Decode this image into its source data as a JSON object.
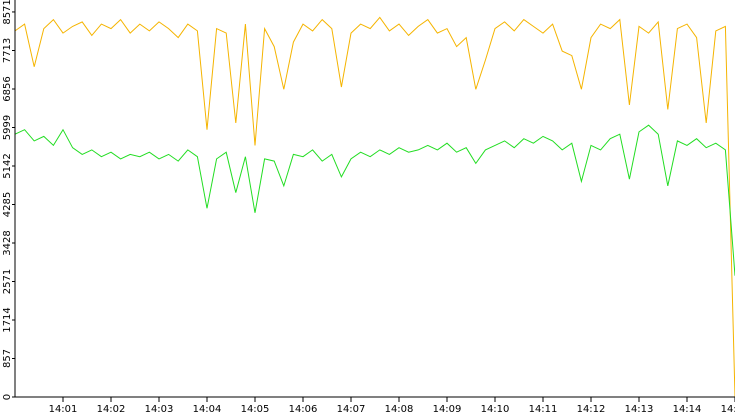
{
  "chart_data": {
    "type": "line",
    "x": [
      0,
      0.2,
      0.4,
      0.6,
      0.8,
      1,
      1.2,
      1.4,
      1.6,
      1.8,
      2,
      2.2,
      2.4,
      2.6,
      2.8,
      3,
      3.2,
      3.4,
      3.6,
      3.8,
      4,
      4.2,
      4.4,
      4.6,
      4.8,
      5,
      5.2,
      5.4,
      5.6,
      5.8,
      6,
      6.2,
      6.4,
      6.6,
      6.8,
      7,
      7.2,
      7.4,
      7.6,
      7.8,
      8,
      8.2,
      8.4,
      8.6,
      8.8,
      9,
      9.2,
      9.4,
      9.6,
      9.8,
      10,
      10.2,
      10.4,
      10.6,
      10.8,
      11,
      11.2,
      11.4,
      11.6,
      11.8,
      12,
      12.2,
      12.4,
      12.6,
      12.8,
      13,
      13.2,
      13.4,
      13.6,
      13.8,
      14,
      14.2,
      14.4,
      14.6,
      14.8,
      15
    ],
    "series": [
      {
        "color": "#f5b400",
        "values": [
          8150,
          8300,
          7350,
          8200,
          8400,
          8100,
          8250,
          8350,
          8050,
          8300,
          8200,
          8400,
          8100,
          8300,
          8150,
          8350,
          8200,
          8000,
          8300,
          8150,
          5950,
          8200,
          8100,
          6100,
          8300,
          5600,
          8200,
          7800,
          6850,
          7900,
          8300,
          8150,
          8400,
          8200,
          6900,
          8100,
          8300,
          8200,
          8450,
          8150,
          8300,
          8050,
          8250,
          8400,
          8100,
          8200,
          7800,
          8000,
          6850,
          7500,
          8200,
          8350,
          8150,
          8400,
          8250,
          8100,
          8300,
          7700,
          7600,
          6850,
          8000,
          8300,
          8200,
          8400,
          6500,
          8250,
          8100,
          8350,
          6400,
          8200,
          8300,
          8000,
          6100,
          8150,
          8250,
          0
        ]
      },
      {
        "color": "#22dd22",
        "values": [
          5850,
          5950,
          5700,
          5800,
          5600,
          5950,
          5550,
          5400,
          5500,
          5350,
          5450,
          5300,
          5400,
          5350,
          5450,
          5300,
          5400,
          5250,
          5500,
          5350,
          4200,
          5300,
          5450,
          4550,
          5350,
          4100,
          5300,
          5250,
          4700,
          5400,
          5350,
          5500,
          5250,
          5400,
          4900,
          5300,
          5450,
          5350,
          5500,
          5400,
          5550,
          5450,
          5500,
          5600,
          5500,
          5650,
          5450,
          5550,
          5200,
          5500,
          5600,
          5700,
          5550,
          5750,
          5650,
          5800,
          5700,
          5500,
          5650,
          4800,
          5600,
          5500,
          5750,
          5850,
          4850,
          5900,
          6050,
          5850,
          4700,
          5700,
          5600,
          5750,
          5550,
          5650,
          5500,
          2700
        ]
      }
    ],
    "xlim": [
      0,
      15
    ],
    "xticks": [
      {
        "value": 1,
        "label": "14:01"
      },
      {
        "value": 2,
        "label": "14:02"
      },
      {
        "value": 3,
        "label": "14:03"
      },
      {
        "value": 4,
        "label": "14:04"
      },
      {
        "value": 5,
        "label": "14:05"
      },
      {
        "value": 6,
        "label": "14:06"
      },
      {
        "value": 7,
        "label": "14:07"
      },
      {
        "value": 8,
        "label": "14:08"
      },
      {
        "value": 9,
        "label": "14:09"
      },
      {
        "value": 10,
        "label": "14:10"
      },
      {
        "value": 11,
        "label": "14:11"
      },
      {
        "value": 12,
        "label": "14:12"
      },
      {
        "value": 13,
        "label": "14:13"
      },
      {
        "value": 14,
        "label": "14:14"
      },
      {
        "value": 15,
        "label": "14:15"
      }
    ],
    "ylim": [
      0,
      8837
    ],
    "yticks": [
      0,
      857,
      1714,
      2571,
      3428,
      4285,
      5142,
      5999,
      6856,
      7713,
      8571
    ],
    "grid": false
  }
}
